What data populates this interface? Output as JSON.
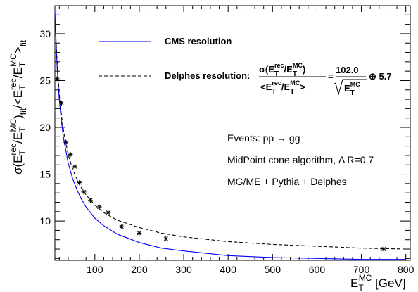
{
  "chart_data": {
    "type": "scatter",
    "xlim": [
      10,
      810
    ],
    "ylim": [
      5.8,
      33
    ],
    "x_ticks": [
      100,
      200,
      300,
      400,
      500,
      600,
      700,
      800
    ],
    "y_ticks": [
      10,
      15,
      20,
      25,
      30
    ],
    "x_minor_step": 20,
    "y_minor_step": 1,
    "grid": false,
    "legend_position": "top-right",
    "series": [
      {
        "name": "CMS resolution",
        "kind": "line",
        "style": "solid",
        "color": "#0000ff",
        "x": [
          10,
          15,
          20,
          25,
          30,
          40,
          50,
          60,
          70,
          80,
          100,
          120,
          150,
          200,
          250,
          300,
          400,
          500,
          600,
          700,
          800
        ],
        "y": [
          32.4,
          26.4,
          22.9,
          20.5,
          18.7,
          16.2,
          14.5,
          13.3,
          12.3,
          11.5,
          10.3,
          9.5,
          8.6,
          7.7,
          7.1,
          6.8,
          6.3,
          6.1,
          6.0,
          5.9,
          5.9
        ]
      },
      {
        "name": "Delphes resolution",
        "kind": "line",
        "style": "dashed",
        "color": "#000000",
        "x": [
          13,
          15,
          20,
          25,
          30,
          40,
          50,
          60,
          70,
          80,
          100,
          120,
          150,
          200,
          250,
          300,
          400,
          500,
          600,
          700,
          800
        ],
        "y": [
          28.9,
          26.9,
          23.5,
          21.2,
          19.5,
          17.1,
          15.5,
          14.4,
          13.5,
          12.8,
          11.7,
          10.9,
          10.1,
          9.3,
          8.7,
          8.3,
          7.8,
          7.5,
          7.3,
          7.1,
          7.0
        ]
      },
      {
        "name": "Delphes",
        "kind": "points",
        "marker": "star",
        "color": "#000000",
        "x": [
          15,
          25,
          35,
          45,
          55,
          65,
          75,
          90,
          110,
          130,
          160,
          200,
          260,
          750
        ],
        "y": [
          25.2,
          22.6,
          18.4,
          17.1,
          15.8,
          14.1,
          13.1,
          12.2,
          11.5,
          10.9,
          9.4,
          8.7,
          8.1,
          7.0
        ]
      }
    ],
    "legend": {
      "cms_label": "CMS resolution",
      "delphes_prefix": "Delphes resolution:",
      "formula_sigma": "σ(E",
      "formula_coef": "102.0",
      "formula_const": "⊕ 5.7"
    },
    "annotations": [
      "Events: pp → gg",
      "MidPoint cone algorithm, Δ R=0.7",
      "MG/ME + Pythia + Delphes"
    ],
    "xlabel": "E_T^MC [GeV]",
    "ylabel": "σ(E_T^rec/E_T^MC)_fit/<E_T^rec/E_T^MC>_fit",
    "colors": {
      "cms": "#0000ff",
      "delphes": "#000000"
    }
  }
}
